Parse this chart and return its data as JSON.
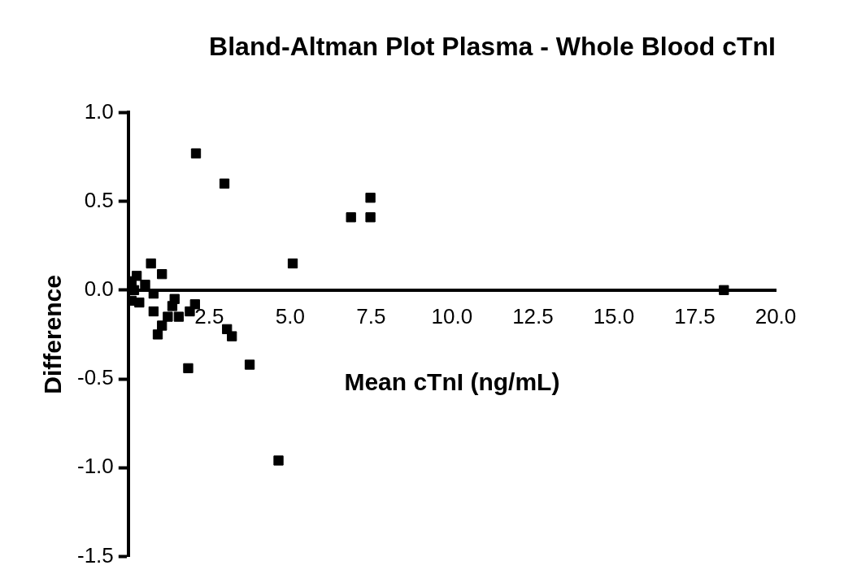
{
  "chart_data": {
    "type": "scatter",
    "title": "Bland-Altman Plot Plasma - Whole Blood cTnI",
    "xlabel": "Mean cTnI (ng/mL)",
    "ylabel": "Difference",
    "series": [
      {
        "color": "#000000",
        "x": [
          2.09,
          2.97,
          6.88,
          7.48,
          7.48,
          5.08,
          18.4,
          1.85,
          3.05,
          3.2,
          3.75,
          4.64,
          2.06,
          1.36,
          0.7,
          1.04,
          0.26,
          0.91,
          1.43,
          1.9,
          1.56,
          1.22,
          0.78,
          1.04,
          0.34,
          0.18,
          0.52,
          0.1,
          0.1,
          0.78
        ],
        "values": [
          0.77,
          0.6,
          0.41,
          0.41,
          0.52,
          0.15,
          0.0,
          -0.44,
          -0.22,
          -0.26,
          -0.42,
          -0.96,
          -0.08,
          -0.09,
          0.15,
          0.09,
          0.08,
          -0.25,
          -0.05,
          -0.12,
          -0.15,
          -0.15,
          -0.12,
          -0.2,
          -0.07,
          0.0,
          0.03,
          0.05,
          -0.06,
          -0.02
        ]
      }
    ],
    "xlim": [
      0,
      20
    ],
    "ylim": [
      -1.5,
      1.0
    ],
    "xticks": [
      {
        "value": 0,
        "label": null
      },
      {
        "value": 2.5,
        "label": "2.5"
      },
      {
        "value": 5,
        "label": "5.0"
      },
      {
        "value": 7.5,
        "label": "7.5"
      },
      {
        "value": 10,
        "label": "10.0"
      },
      {
        "value": 12.5,
        "label": "12.5"
      },
      {
        "value": 15,
        "label": "15.0"
      },
      {
        "value": 17.5,
        "label": "17.5"
      },
      {
        "value": 20,
        "label": "20.0"
      }
    ],
    "yticks": [
      {
        "value": 1,
        "label": "1.0"
      },
      {
        "value": 0.5,
        "label": "0.5"
      },
      {
        "value": 0,
        "label": "0.0"
      },
      {
        "value": -0.5,
        "label": "-0.5"
      },
      {
        "value": -1,
        "label": "-1.0"
      },
      {
        "value": -1.5,
        "label": "-1.5"
      }
    ],
    "grid": false,
    "legend": false,
    "marker": "square"
  }
}
